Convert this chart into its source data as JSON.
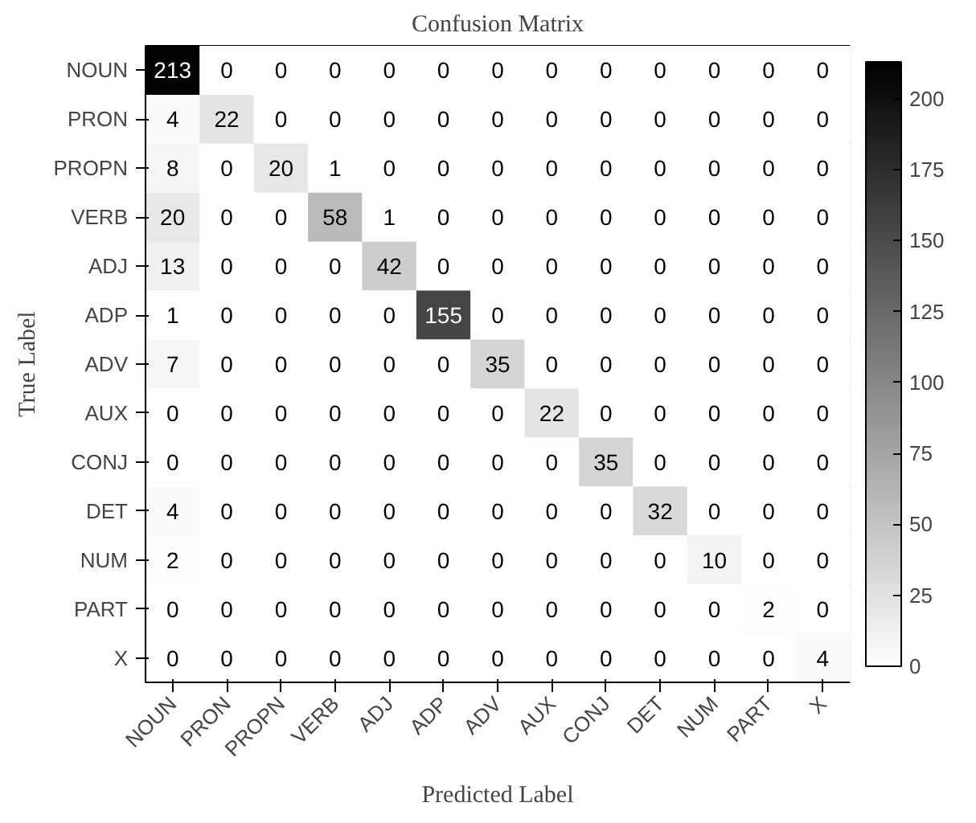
{
  "chart_data": {
    "type": "heatmap",
    "title": "Confusion Matrix",
    "xlabel": "Predicted Label",
    "ylabel": "True Label",
    "data_labels": true,
    "categories": [
      "NOUN",
      "PRON",
      "PROPN",
      "VERB",
      "ADJ",
      "ADP",
      "ADV",
      "AUX",
      "CONJ",
      "DET",
      "NUM",
      "PART",
      "X"
    ],
    "y_categories": [
      "NOUN",
      "PRON",
      "PROPN",
      "VERB",
      "ADJ",
      "ADP",
      "ADV",
      "AUX",
      "CONJ",
      "DET",
      "NUM",
      "PART",
      "X"
    ],
    "cells": [
      [
        213,
        0,
        0,
        0,
        0,
        0,
        0,
        0,
        0,
        0,
        0,
        0,
        0
      ],
      [
        4,
        22,
        0,
        0,
        0,
        0,
        0,
        0,
        0,
        0,
        0,
        0,
        0
      ],
      [
        8,
        0,
        20,
        1,
        0,
        0,
        0,
        0,
        0,
        0,
        0,
        0,
        0
      ],
      [
        20,
        0,
        0,
        58,
        1,
        0,
        0,
        0,
        0,
        0,
        0,
        0,
        0
      ],
      [
        13,
        0,
        0,
        0,
        42,
        0,
        0,
        0,
        0,
        0,
        0,
        0,
        0
      ],
      [
        1,
        0,
        0,
        0,
        0,
        155,
        0,
        0,
        0,
        0,
        0,
        0,
        0
      ],
      [
        7,
        0,
        0,
        0,
        0,
        0,
        35,
        0,
        0,
        0,
        0,
        0,
        0
      ],
      [
        0,
        0,
        0,
        0,
        0,
        0,
        0,
        22,
        0,
        0,
        0,
        0,
        0
      ],
      [
        0,
        0,
        0,
        0,
        0,
        0,
        0,
        0,
        35,
        0,
        0,
        0,
        0
      ],
      [
        4,
        0,
        0,
        0,
        0,
        0,
        0,
        0,
        0,
        32,
        0,
        0,
        0
      ],
      [
        2,
        0,
        0,
        0,
        0,
        0,
        0,
        0,
        0,
        0,
        10,
        0,
        0
      ],
      [
        0,
        0,
        0,
        0,
        0,
        0,
        0,
        0,
        0,
        0,
        0,
        2,
        0
      ],
      [
        0,
        0,
        0,
        0,
        0,
        0,
        0,
        0,
        0,
        0,
        0,
        0,
        4
      ]
    ],
    "clim": [
      0,
      213
    ],
    "cticks": [
      0,
      25,
      50,
      75,
      100,
      125,
      150,
      175,
      200
    ]
  }
}
